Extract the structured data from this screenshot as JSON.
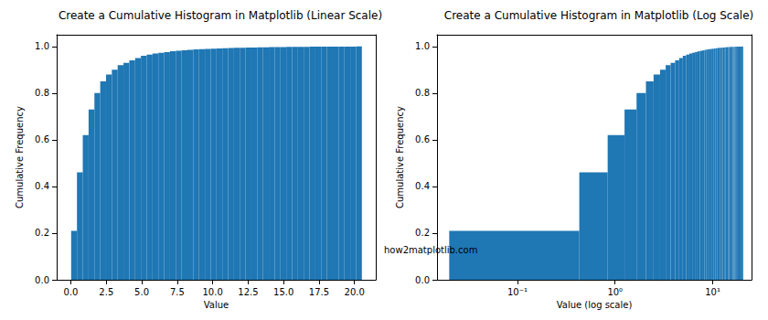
{
  "annotation": "how2matplotlib.com",
  "chart_data": [
    {
      "type": "histogram",
      "title": "Create a Cumulative Histogram in Matplotlib (Linear Scale)",
      "x_label": "Value",
      "y_label": "Cumulative Frequency",
      "color": "#1f77b4",
      "grid": false,
      "bins": [
        0.02,
        0.43,
        0.84,
        1.25,
        1.66,
        2.07,
        2.48,
        2.89,
        3.3,
        3.71,
        4.12,
        4.53,
        4.94,
        5.35,
        5.76,
        6.17,
        6.58,
        6.99,
        7.4,
        7.81,
        8.22,
        8.63,
        9.04,
        9.45,
        9.86,
        10.27,
        10.68,
        11.09,
        11.5,
        11.91,
        12.32,
        12.73,
        13.14,
        13.55,
        13.96,
        14.37,
        14.78,
        15.19,
        15.6,
        16.01,
        16.42,
        16.83,
        17.24,
        17.65,
        18.06,
        18.47,
        18.88,
        19.29,
        19.7,
        20.11,
        20.52
      ],
      "values": [
        0.21,
        0.46,
        0.62,
        0.73,
        0.8,
        0.85,
        0.88,
        0.9,
        0.92,
        0.93,
        0.94,
        0.95,
        0.96,
        0.965,
        0.97,
        0.973,
        0.976,
        0.979,
        0.981,
        0.983,
        0.985,
        0.987,
        0.988,
        0.989,
        0.99,
        0.991,
        0.992,
        0.993,
        0.994,
        0.994,
        0.995,
        0.995,
        0.996,
        0.996,
        0.997,
        0.997,
        0.997,
        0.998,
        0.998,
        0.998,
        0.998,
        0.999,
        0.999,
        0.999,
        0.999,
        0.999,
        0.999,
        0.999,
        0.999,
        1.0
      ],
      "xlim": [
        -1.0,
        21.5
      ],
      "xticks": [
        {
          "value": 0,
          "label": "0.0"
        },
        2.5,
        {
          "value": 5,
          "label": "5.0"
        },
        7.5,
        {
          "value": 10,
          "label": "10.0"
        },
        12.5,
        {
          "value": 15,
          "label": "15.0"
        },
        17.5,
        {
          "value": 20,
          "label": "20.0"
        }
      ],
      "ylim": [
        0,
        1.05
      ],
      "yticks": [
        {
          "value": 0,
          "label": "0.0"
        },
        0.2,
        0.4,
        0.6,
        0.8,
        {
          "value": 1,
          "label": "1.0"
        }
      ]
    },
    {
      "type": "histogram",
      "title": "Create a Cumulative Histogram in Matplotlib (Log Scale)",
      "x_label": "Value (log scale)",
      "y_label": "Cumulative Frequency",
      "color": "#1f77b4",
      "grid": false,
      "log": "x",
      "bins": [
        0.02,
        0.43,
        0.84,
        1.25,
        1.66,
        2.07,
        2.48,
        2.89,
        3.3,
        3.71,
        4.12,
        4.53,
        4.94,
        5.35,
        5.76,
        6.17,
        6.58,
        6.99,
        7.4,
        7.81,
        8.22,
        8.63,
        9.04,
        9.45,
        9.86,
        10.27,
        10.68,
        11.09,
        11.5,
        11.91,
        12.32,
        12.73,
        13.14,
        13.55,
        13.96,
        14.37,
        14.78,
        15.19,
        15.6,
        16.01,
        16.42,
        16.83,
        17.24,
        17.65,
        18.06,
        18.47,
        18.88,
        19.29,
        19.7,
        20.11,
        20.52
      ],
      "values": [
        0.21,
        0.46,
        0.62,
        0.73,
        0.8,
        0.85,
        0.88,
        0.9,
        0.92,
        0.93,
        0.94,
        0.95,
        0.96,
        0.965,
        0.97,
        0.973,
        0.976,
        0.979,
        0.981,
        0.983,
        0.985,
        0.987,
        0.988,
        0.989,
        0.99,
        0.991,
        0.992,
        0.993,
        0.994,
        0.994,
        0.995,
        0.995,
        0.996,
        0.996,
        0.997,
        0.997,
        0.997,
        0.998,
        0.998,
        0.998,
        0.998,
        0.999,
        0.999,
        0.999,
        0.999,
        0.999,
        0.999,
        0.999,
        0.999,
        1.0
      ],
      "xlim": [
        0.015,
        25
      ],
      "xticks": [
        {
          "value": 0.1,
          "label": "10⁻¹"
        },
        {
          "value": 1,
          "label": "10⁰"
        },
        {
          "value": 10,
          "label": "10¹"
        }
      ],
      "ylim": [
        0,
        1.05
      ],
      "yticks": [
        {
          "value": 0,
          "label": "0.0"
        },
        0.2,
        0.4,
        0.6,
        0.8,
        {
          "value": 1,
          "label": "1.0"
        }
      ]
    }
  ]
}
